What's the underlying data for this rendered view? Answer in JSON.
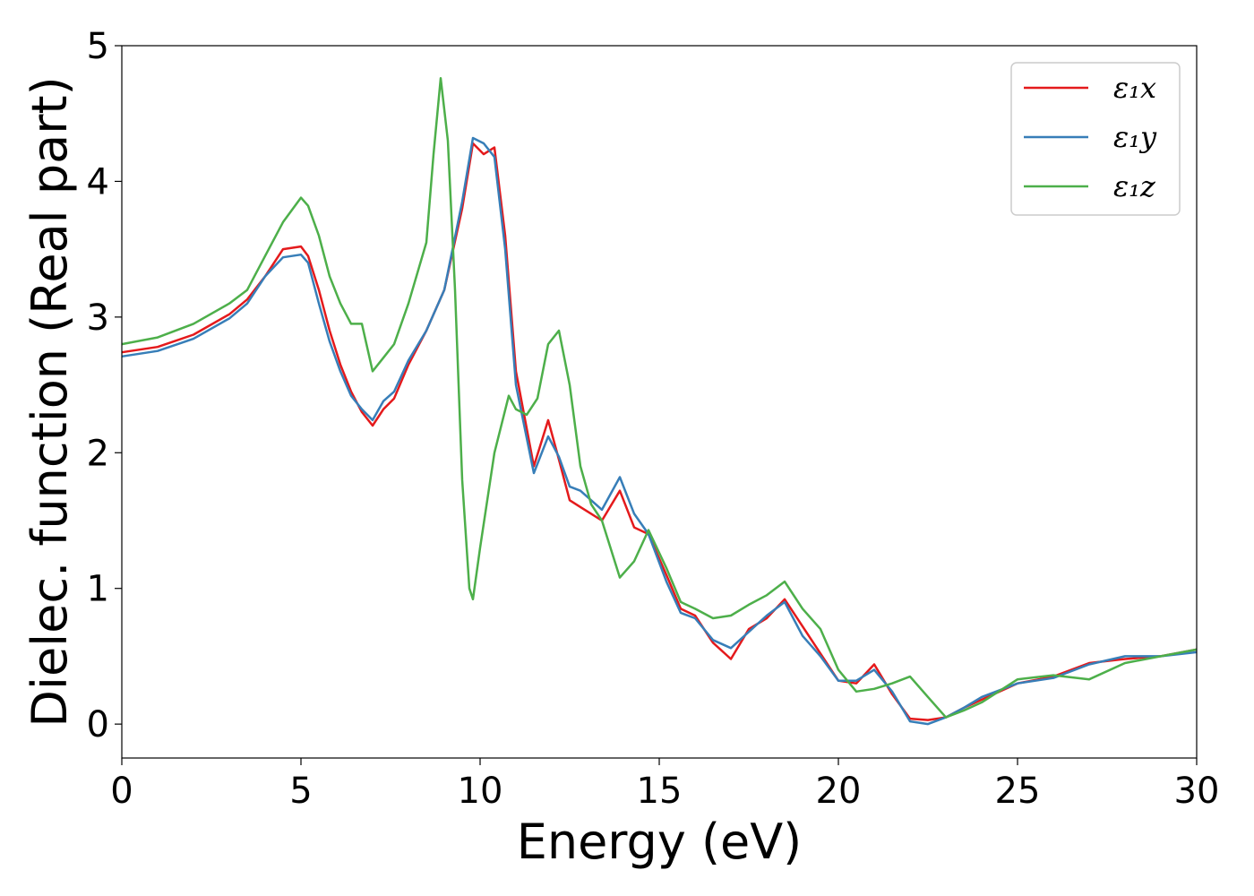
{
  "chart_data": {
    "type": "line",
    "xlabel": "Energy (eV)",
    "ylabel": "Dielec. function (Real part)",
    "xlim": [
      0,
      30
    ],
    "ylim": [
      -0.25,
      5
    ],
    "xticks": [
      "0",
      "5",
      "10",
      "15",
      "20",
      "25",
      "30"
    ],
    "yticks": [
      "0",
      "1",
      "2",
      "3",
      "4",
      "5"
    ],
    "grid": false,
    "legend_position": "top-right",
    "series": [
      {
        "name": "ε₁x",
        "color": "#e41a1c",
        "x": [
          0,
          1,
          2,
          3,
          3.5,
          4,
          4.5,
          5,
          5.2,
          5.5,
          5.8,
          6.1,
          6.4,
          6.7,
          7.0,
          7.3,
          7.6,
          8.0,
          8.5,
          9.0,
          9.5,
          9.8,
          10.1,
          10.4,
          10.7,
          11.0,
          11.5,
          11.9,
          12.2,
          12.5,
          12.8,
          13.1,
          13.4,
          13.9,
          14.3,
          14.7,
          15.2,
          15.6,
          16.0,
          16.5,
          17.0,
          17.5,
          18.0,
          18.5,
          19.0,
          19.5,
          20.0,
          20.5,
          21.0,
          21.5,
          22.0,
          22.5,
          23.0,
          23.5,
          24.0,
          25.0,
          26.0,
          27.0,
          28.0,
          29.0,
          30.0
        ],
        "y": [
          2.74,
          2.78,
          2.87,
          3.02,
          3.13,
          3.3,
          3.5,
          3.52,
          3.45,
          3.2,
          2.9,
          2.65,
          2.45,
          2.3,
          2.2,
          2.32,
          2.4,
          2.65,
          2.9,
          3.2,
          3.8,
          4.28,
          4.2,
          4.25,
          3.6,
          2.6,
          1.9,
          2.24,
          1.95,
          1.65,
          1.6,
          1.55,
          1.5,
          1.72,
          1.45,
          1.4,
          1.1,
          0.85,
          0.8,
          0.6,
          0.48,
          0.7,
          0.78,
          0.92,
          0.72,
          0.52,
          0.32,
          0.3,
          0.44,
          0.22,
          0.04,
          0.03,
          0.05,
          0.12,
          0.18,
          0.3,
          0.35,
          0.45,
          0.48,
          0.5,
          0.55
        ]
      },
      {
        "name": "ε₁y",
        "color": "#377eb8",
        "x": [
          0,
          1,
          2,
          3,
          3.5,
          4,
          4.5,
          5,
          5.2,
          5.5,
          5.8,
          6.1,
          6.4,
          6.7,
          7.0,
          7.3,
          7.6,
          8.0,
          8.5,
          9.0,
          9.5,
          9.8,
          10.1,
          10.4,
          10.7,
          11.0,
          11.5,
          11.9,
          12.2,
          12.5,
          12.8,
          13.1,
          13.4,
          13.9,
          14.3,
          14.7,
          15.2,
          15.6,
          16.0,
          16.5,
          17.0,
          17.5,
          18.0,
          18.5,
          19.0,
          19.5,
          20.0,
          20.5,
          21.0,
          21.5,
          22.0,
          22.5,
          23.0,
          23.5,
          24.0,
          25.0,
          26.0,
          27.0,
          28.0,
          29.0,
          30.0
        ],
        "y": [
          2.71,
          2.75,
          2.84,
          2.99,
          3.1,
          3.3,
          3.44,
          3.46,
          3.4,
          3.1,
          2.82,
          2.6,
          2.42,
          2.32,
          2.24,
          2.38,
          2.45,
          2.68,
          2.9,
          3.2,
          3.85,
          4.32,
          4.28,
          4.18,
          3.5,
          2.5,
          1.85,
          2.12,
          1.97,
          1.75,
          1.72,
          1.65,
          1.58,
          1.82,
          1.55,
          1.4,
          1.05,
          0.82,
          0.78,
          0.62,
          0.56,
          0.68,
          0.8,
          0.9,
          0.65,
          0.5,
          0.32,
          0.32,
          0.4,
          0.24,
          0.02,
          0.0,
          0.05,
          0.12,
          0.2,
          0.3,
          0.34,
          0.44,
          0.5,
          0.5,
          0.53
        ]
      },
      {
        "name": "ε₁z",
        "color": "#4daf4a",
        "x": [
          0,
          1,
          2,
          3,
          3.5,
          4,
          4.5,
          5,
          5.2,
          5.5,
          5.8,
          6.1,
          6.4,
          6.7,
          7.0,
          7.3,
          7.6,
          8.0,
          8.5,
          8.7,
          8.9,
          9.1,
          9.3,
          9.5,
          9.7,
          9.8,
          10.0,
          10.4,
          10.8,
          11.0,
          11.3,
          11.6,
          11.9,
          12.2,
          12.5,
          12.8,
          13.1,
          13.4,
          13.9,
          14.3,
          14.7,
          15.2,
          15.6,
          16.0,
          16.5,
          17.0,
          17.5,
          18.0,
          18.5,
          19.0,
          19.5,
          20.0,
          20.5,
          21.0,
          21.5,
          22.0,
          22.5,
          23.0,
          23.5,
          24.0,
          25.0,
          26.0,
          27.0,
          28.0,
          29.0,
          30.0
        ],
        "y": [
          2.8,
          2.85,
          2.95,
          3.1,
          3.2,
          3.45,
          3.7,
          3.88,
          3.82,
          3.6,
          3.3,
          3.1,
          2.95,
          2.95,
          2.6,
          2.7,
          2.8,
          3.1,
          3.55,
          4.2,
          4.76,
          4.3,
          3.2,
          1.8,
          1.0,
          0.92,
          1.3,
          2.0,
          2.42,
          2.32,
          2.28,
          2.4,
          2.8,
          2.9,
          2.5,
          1.9,
          1.62,
          1.5,
          1.08,
          1.2,
          1.43,
          1.15,
          0.9,
          0.85,
          0.78,
          0.8,
          0.88,
          0.95,
          1.05,
          0.85,
          0.7,
          0.4,
          0.24,
          0.26,
          0.3,
          0.35,
          0.2,
          0.05,
          0.1,
          0.16,
          0.33,
          0.36,
          0.33,
          0.45,
          0.5,
          0.55
        ]
      }
    ]
  }
}
